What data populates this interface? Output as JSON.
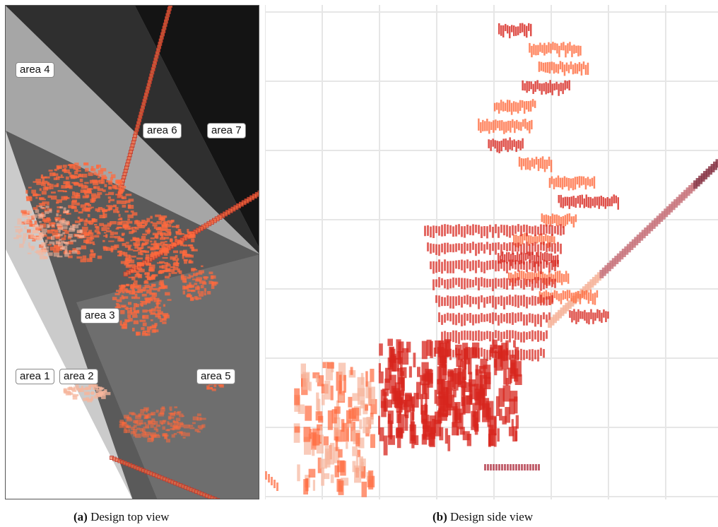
{
  "panels": {
    "top_view": {
      "caption_letter": "(a)",
      "caption_text": "Design top view",
      "areas": [
        {
          "label": "area 1",
          "fill": "#ffffff"
        },
        {
          "label": "area 2",
          "fill": "#cbcbcb"
        },
        {
          "label": "area 3",
          "fill": "#5a5a5a"
        },
        {
          "label": "area 4",
          "fill": "#a6a6a6"
        },
        {
          "label": "area 5",
          "fill": "#6e6e6e"
        },
        {
          "label": "area 6",
          "fill": "#2f2f2f"
        },
        {
          "label": "area 7",
          "fill": "#141414"
        }
      ]
    },
    "side_view": {
      "caption_letter": "(b)",
      "caption_text": "Design side view"
    }
  },
  "colors": {
    "primary_mark": "#ff6a3d",
    "dark_mark": "#d7261e",
    "light_mark": "#f6b59c",
    "grid_line": "#e6e6e6"
  }
}
